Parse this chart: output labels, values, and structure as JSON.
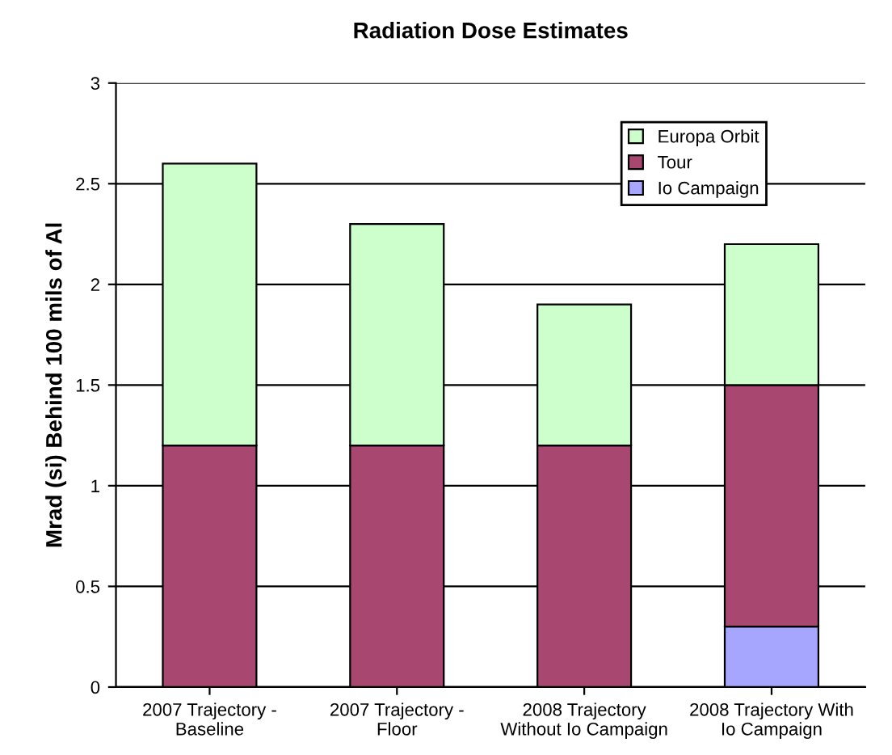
{
  "chart_data": {
    "type": "bar",
    "title": "Radiation Dose Estimates",
    "ylabel": "Mrad (si) Behind 100 mils of Al",
    "categories": [
      "2007 Trajectory -\nBaseline",
      "2007 Trajectory -\nFloor",
      "2008 Trajectory\nWithout Io Campaign",
      "2008 Trajectory With\nIo Campaign"
    ],
    "stacked": true,
    "series": [
      {
        "name": "Io Campaign",
        "color": "#a6a6ff",
        "values": [
          0,
          0,
          0,
          0.3
        ]
      },
      {
        "name": "Tour",
        "color": "#a8476f",
        "values": [
          1.2,
          1.2,
          1.2,
          1.2
        ]
      },
      {
        "name": "Europa Orbit",
        "color": "#ccffcc",
        "values": [
          1.4,
          1.1,
          0.7,
          0.7
        ]
      }
    ],
    "ylim": [
      0,
      3
    ],
    "yticks": [
      0,
      0.5,
      1,
      1.5,
      2,
      2.5,
      3
    ],
    "grid": "y",
    "legend": "top right"
  }
}
